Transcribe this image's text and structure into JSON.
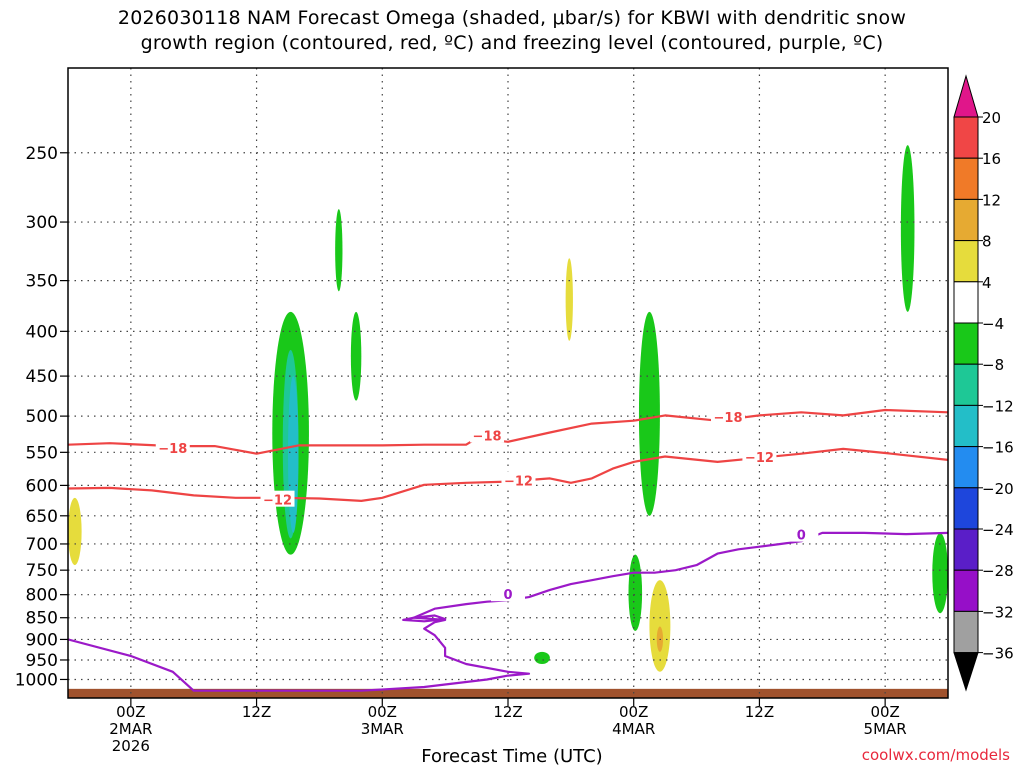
{
  "title": {
    "line1": "2026030118 NAM Forecast Omega (shaded, μbar/s) for KBWI with dendritic snow",
    "line2": "growth region (contoured, red, ºC) and freezing level (contoured, purple, ºC)"
  },
  "credit": "coolwx.com/models",
  "chart_data": {
    "type": "time-height cross section",
    "title": "2026030118 NAM Forecast Omega (shaded, μbar/s) for KBWI with dendritic snow growth region (contoured, red, ºC) and freezing level (contoured, purple, ºC)",
    "xlabel": "Forecast Time (UTC)",
    "ylabel": "",
    "x_unit": "forecast hour from 2026-03-01 18Z",
    "x_range": [
      0,
      84
    ],
    "y_unit": "pressure (hPa)",
    "y_range": [
      1050,
      200
    ],
    "y_scale": "log",
    "y_ticks": [
      250,
      300,
      350,
      400,
      450,
      500,
      550,
      600,
      650,
      700,
      750,
      800,
      850,
      900,
      950,
      1000
    ],
    "x_ticks": [
      {
        "hour": 6,
        "lines": [
          "00Z",
          "2MAR",
          "2026"
        ]
      },
      {
        "hour": 18,
        "lines": [
          "12Z"
        ]
      },
      {
        "hour": 30,
        "lines": [
          "00Z",
          "3MAR"
        ]
      },
      {
        "hour": 42,
        "lines": [
          "12Z"
        ]
      },
      {
        "hour": 54,
        "lines": [
          "00Z",
          "4MAR"
        ]
      },
      {
        "hour": 66,
        "lines": [
          "12Z"
        ]
      },
      {
        "hour": 78,
        "lines": [
          "00Z",
          "5MAR"
        ]
      }
    ],
    "colorbar": {
      "labels": [
        "20",
        "16",
        "12",
        "8",
        "4",
        "−4",
        "−8",
        "−12",
        "−16",
        "−20",
        "−24",
        "−28",
        "−32",
        "−36"
      ],
      "colors": [
        "#e0168a",
        "#f04646",
        "#f07a28",
        "#e6aa32",
        "#e6dc3c",
        "#ffffff",
        "#19c819",
        "#1ec896",
        "#23bec8",
        "#238cf0",
        "#1e46dc",
        "#5a1ec8",
        "#960fc8",
        "#a0a0a0",
        "#000000"
      ]
    },
    "contours": [
      {
        "variable": "temperature",
        "value": -18,
        "color": "#ee4444",
        "label": "−18",
        "points": [
          [
            0,
            539
          ],
          [
            4,
            537
          ],
          [
            10,
            541
          ],
          [
            14,
            541
          ],
          [
            18,
            552
          ],
          [
            22,
            540
          ],
          [
            26,
            540
          ],
          [
            30,
            540
          ],
          [
            34,
            539
          ],
          [
            38,
            539
          ],
          [
            39,
            530
          ],
          [
            42,
            535
          ],
          [
            46,
            522
          ],
          [
            50,
            510
          ],
          [
            54,
            506
          ],
          [
            57,
            499
          ],
          [
            62,
            506
          ],
          [
            66,
            499
          ],
          [
            70,
            495
          ],
          [
            74,
            499
          ],
          [
            78,
            492
          ],
          [
            84,
            495
          ]
        ],
        "labels": [
          {
            "x": 10,
            "y": 544
          },
          {
            "x": 40,
            "y": 526
          },
          {
            "x": 63,
            "y": 501
          }
        ]
      },
      {
        "variable": "temperature",
        "value": -12,
        "color": "#ee4444",
        "label": "−12",
        "points": [
          [
            0,
            605
          ],
          [
            4,
            604
          ],
          [
            8,
            608
          ],
          [
            12,
            616
          ],
          [
            16,
            620
          ],
          [
            20,
            620
          ],
          [
            24,
            621
          ],
          [
            28,
            625
          ],
          [
            30,
            620
          ],
          [
            34,
            599
          ],
          [
            38,
            596
          ],
          [
            42,
            594
          ],
          [
            46,
            589
          ],
          [
            48,
            596
          ],
          [
            50,
            589
          ],
          [
            52,
            574
          ],
          [
            54,
            564
          ],
          [
            57,
            556
          ],
          [
            62,
            564
          ],
          [
            66,
            558
          ],
          [
            70,
            552
          ],
          [
            74,
            545
          ],
          [
            78,
            551
          ],
          [
            84,
            561
          ]
        ],
        "labels": [
          {
            "x": 20,
            "y": 623
          },
          {
            "x": 43,
            "y": 592
          },
          {
            "x": 66,
            "y": 557
          }
        ]
      },
      {
        "variable": "temperature",
        "value": 0,
        "color": "#9b19c8",
        "label": "0",
        "points": [
          [
            0,
            900
          ],
          [
            6,
            940
          ],
          [
            10,
            980
          ],
          [
            12,
            1030
          ],
          [
            20,
            1030
          ],
          [
            28,
            1030
          ],
          [
            34,
            1020
          ],
          [
            40,
            1000
          ],
          [
            42,
            990
          ],
          [
            44,
            985
          ],
          [
            42,
            980
          ],
          [
            38,
            960
          ],
          [
            36,
            940
          ],
          [
            36,
            920
          ],
          [
            35,
            890
          ],
          [
            34,
            875
          ],
          [
            35,
            860
          ],
          [
            36,
            855
          ],
          [
            33,
            850
          ],
          [
            35,
            830
          ],
          [
            38,
            820
          ],
          [
            40,
            815
          ],
          [
            42,
            812
          ],
          [
            44,
            805
          ],
          [
            46,
            790
          ],
          [
            48,
            778
          ],
          [
            50,
            770
          ],
          [
            52,
            762
          ],
          [
            54,
            755
          ],
          [
            56,
            755
          ],
          [
            58,
            750
          ],
          [
            60,
            740
          ],
          [
            62,
            718
          ],
          [
            64,
            710
          ],
          [
            66,
            705
          ],
          [
            68,
            700
          ],
          [
            70,
            695
          ],
          [
            72,
            680
          ],
          [
            76,
            680
          ],
          [
            80,
            682
          ],
          [
            84,
            680
          ]
        ],
        "labels": [
          {
            "x": 42,
            "y": 799
          },
          {
            "x": 70,
            "y": 683
          }
        ]
      },
      {
        "variable": "temperature",
        "value": 0,
        "color": "#9b19c8",
        "label": "",
        "points": [
          [
            33,
            850
          ],
          [
            35,
            845
          ],
          [
            36,
            853
          ],
          [
            34,
            858
          ],
          [
            32,
            855
          ],
          [
            33,
            850
          ]
        ]
      }
    ],
    "shaded_regions": [
      {
        "omega_min": -8,
        "omega_max": -4,
        "color": "#19c819",
        "t": [
          19.5,
          23
        ],
        "p": [
          380,
          720
        ]
      },
      {
        "omega_min": -12,
        "omega_max": -8,
        "color": "#1ec896",
        "t": [
          20.5,
          22
        ],
        "p": [
          420,
          690
        ]
      },
      {
        "omega_min": -16,
        "omega_max": -12,
        "color": "#23bec8",
        "t": [
          21,
          22
        ],
        "p": [
          450,
          680
        ]
      },
      {
        "omega_min": -8,
        "omega_max": -4,
        "color": "#19c819",
        "t": [
          25.5,
          26.2
        ],
        "p": [
          290,
          360
        ]
      },
      {
        "omega_min": -8,
        "omega_max": -4,
        "color": "#19c819",
        "t": [
          27,
          28
        ],
        "p": [
          380,
          480
        ]
      },
      {
        "omega_min": 4,
        "omega_max": 8,
        "color": "#e6dc3c",
        "t": [
          47.5,
          48.2
        ],
        "p": [
          330,
          410
        ]
      },
      {
        "omega_min": -8,
        "omega_max": -4,
        "color": "#19c819",
        "t": [
          54.5,
          56.5
        ],
        "p": [
          380,
          650
        ]
      },
      {
        "omega_min": -8,
        "omega_max": -4,
        "color": "#19c819",
        "t": [
          53.5,
          54.8
        ],
        "p": [
          720,
          880
        ]
      },
      {
        "omega_min": 4,
        "omega_max": 8,
        "color": "#e6dc3c",
        "t": [
          55.5,
          57.5
        ],
        "p": [
          770,
          980
        ]
      },
      {
        "omega_min": 8,
        "omega_max": 12,
        "color": "#e6aa32",
        "t": [
          56.2,
          56.8
        ],
        "p": [
          870,
          930
        ]
      },
      {
        "omega_min": -8,
        "omega_max": -4,
        "color": "#19c819",
        "t": [
          79.5,
          80.8
        ],
        "p": [
          245,
          380
        ]
      },
      {
        "omega_min": -8,
        "omega_max": -4,
        "color": "#19c819",
        "t": [
          82.5,
          84
        ],
        "p": [
          680,
          840
        ]
      },
      {
        "omega_min": -8,
        "omega_max": -4,
        "color": "#19c819",
        "t": [
          44.5,
          46
        ],
        "p": [
          930,
          960
        ]
      },
      {
        "omega_min": 4,
        "omega_max": 8,
        "color": "#e6dc3c",
        "t": [
          0,
          1.3
        ],
        "p": [
          620,
          740
        ]
      }
    ],
    "ground": {
      "color": "#a0522d",
      "p_top": 1025
    }
  }
}
